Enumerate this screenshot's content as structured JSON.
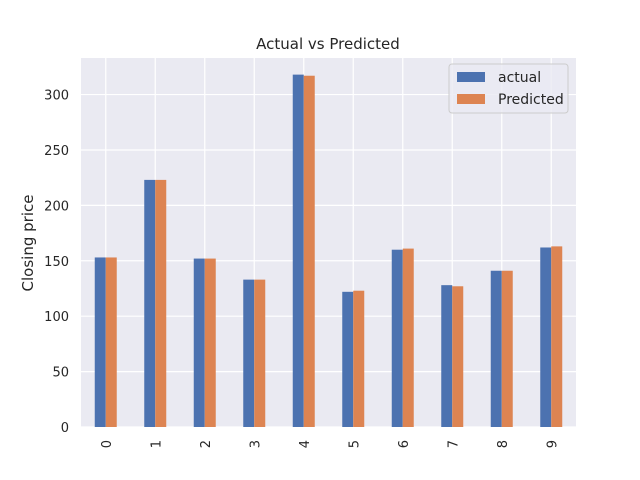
{
  "chart_data": {
    "type": "bar",
    "title": "Actual vs Predicted",
    "xlabel": "",
    "ylabel": "Closing price",
    "categories": [
      "0",
      "1",
      "2",
      "3",
      "4",
      "5",
      "6",
      "7",
      "8",
      "9"
    ],
    "series": [
      {
        "name": "actual",
        "color": "#4c72b0",
        "values": [
          153,
          223,
          152,
          133,
          318,
          122,
          160,
          128,
          141,
          162
        ]
      },
      {
        "name": "Predicted",
        "color": "#dd8452",
        "values": [
          153,
          223,
          152,
          133,
          317,
          123,
          161,
          127,
          141,
          163
        ]
      }
    ],
    "yticks": [
      0,
      50,
      100,
      150,
      200,
      250,
      300
    ],
    "ylim": [
      0,
      333
    ],
    "grid": true,
    "legend_position": "top-right",
    "background": "#eaeaf2",
    "grid_color": "#ffffff"
  }
}
